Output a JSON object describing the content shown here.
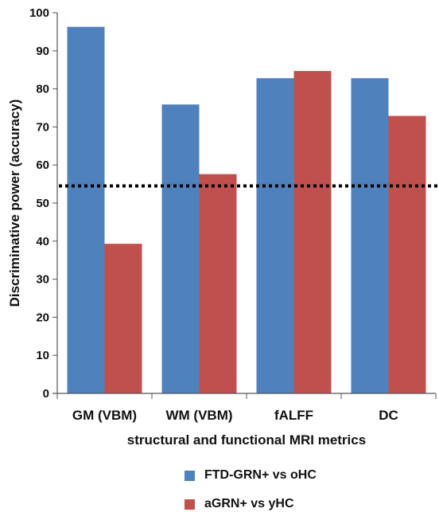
{
  "chart_data": {
    "type": "bar",
    "title": "",
    "xlabel": "structural and functional MRI metrics",
    "ylabel": "Discriminative power (accuracy)",
    "ylim": [
      0,
      100
    ],
    "yticks": [
      0,
      10,
      20,
      30,
      40,
      50,
      60,
      70,
      80,
      90,
      100
    ],
    "categories": [
      "GM (VBM)",
      "WM (VBM)",
      "fALFF",
      "DC"
    ],
    "series": [
      {
        "name": "FTD-GRN+ vs oHC",
        "color": "#4F81BD",
        "values": [
          96.3,
          75.9,
          82.8,
          82.8
        ]
      },
      {
        "name": "aGRN+ vs yHC",
        "color": "#C0504D",
        "values": [
          39.3,
          57.6,
          84.7,
          72.9
        ]
      }
    ],
    "reference_line": {
      "value": 54.5,
      "style": "dotted",
      "color": "#000000"
    },
    "grid": false,
    "legend_position": "bottom"
  }
}
